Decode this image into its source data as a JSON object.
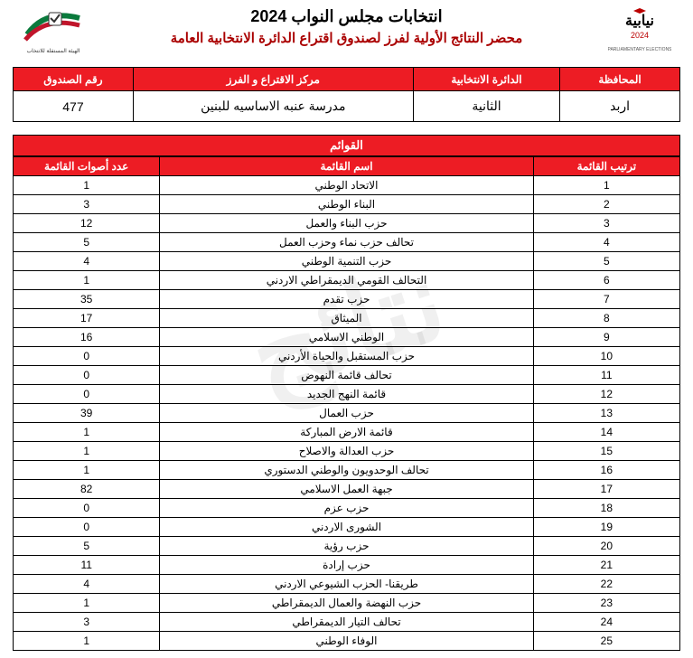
{
  "watermark_text": "نتائج",
  "header": {
    "title1": "انتخابات مجلس النواب 2024",
    "title2": "محضر النتائج الأولية لفرز لصندوق اقتراع الدائرة الانتخابية العامة"
  },
  "info": {
    "headers": {
      "governorate": "المحافظة",
      "district": "الدائرة الانتخابية",
      "center": "مركز الاقتراع و الفرز",
      "box": "رقم الصندوق"
    },
    "values": {
      "governorate": "اربد",
      "district": "الثانية",
      "center": "مدرسة عنبه الاساسيه للبنين",
      "box": "477"
    }
  },
  "lists": {
    "section_label": "القوائم",
    "headers": {
      "rank": "ترتيب القائمة",
      "name": "اسم القائمة",
      "votes": "عدد أصوات القائمة"
    },
    "rows": [
      {
        "rank": "1",
        "name": "الاتحاد الوطني",
        "votes": "1"
      },
      {
        "rank": "2",
        "name": "البناء الوطني",
        "votes": "3"
      },
      {
        "rank": "3",
        "name": "حزب البناء والعمل",
        "votes": "12"
      },
      {
        "rank": "4",
        "name": "تحالف حزب نماء وحزب العمل",
        "votes": "5"
      },
      {
        "rank": "5",
        "name": "حزب التنمية الوطني",
        "votes": "4"
      },
      {
        "rank": "6",
        "name": "التحالف القومي الديمقراطي الاردني",
        "votes": "1"
      },
      {
        "rank": "7",
        "name": "حزب تقدم",
        "votes": "35"
      },
      {
        "rank": "8",
        "name": "الميثاق",
        "votes": "17"
      },
      {
        "rank": "9",
        "name": "الوطني الاسلامي",
        "votes": "16"
      },
      {
        "rank": "10",
        "name": "حزب المستقبل والحياة الأردني",
        "votes": "0"
      },
      {
        "rank": "11",
        "name": "تحالف قائمة النهوض",
        "votes": "0"
      },
      {
        "rank": "12",
        "name": "قائمة النهج الجديد",
        "votes": "0"
      },
      {
        "rank": "13",
        "name": "حزب العمال",
        "votes": "39"
      },
      {
        "rank": "14",
        "name": "قائمة الارض المباركة",
        "votes": "1"
      },
      {
        "rank": "15",
        "name": "حزب العدالة والاصلاح",
        "votes": "1"
      },
      {
        "rank": "16",
        "name": "تحالف الوحدويون والوطني الدستوري",
        "votes": "1"
      },
      {
        "rank": "17",
        "name": "جبهة العمل الاسلامي",
        "votes": "82"
      },
      {
        "rank": "18",
        "name": "حزب عزم",
        "votes": "0"
      },
      {
        "rank": "19",
        "name": "الشورى الاردني",
        "votes": "0"
      },
      {
        "rank": "20",
        "name": "حزب رؤية",
        "votes": "5"
      },
      {
        "rank": "21",
        "name": "حزب إرادة",
        "votes": "11"
      },
      {
        "rank": "22",
        "name": "طريقنا- الحزب الشيوعي الاردني",
        "votes": "4"
      },
      {
        "rank": "23",
        "name": "حزب النهضة والعمال الديمقراطي",
        "votes": "1"
      },
      {
        "rank": "24",
        "name": "تحالف التيار الديمقراطي",
        "votes": "3"
      },
      {
        "rank": "25",
        "name": "الوفاء الوطني",
        "votes": "1"
      }
    ]
  },
  "colors": {
    "header_bg": "#ed1c24",
    "header_fg": "#ffffff",
    "border": "#000000",
    "subtitle": "#a00000"
  }
}
